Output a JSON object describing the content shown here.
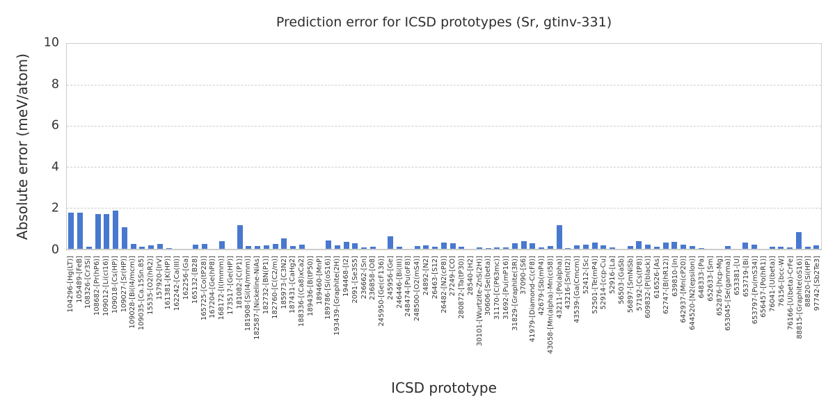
{
  "title": "Prediction error for ICSD prototypes (Sr, gtinv-331)",
  "axes": {
    "xlabel": "ICSD prototype",
    "ylabel": "Absolute error (meV/atom)"
  },
  "colors": {
    "bar": "#4878cf",
    "grid": "#cccccc",
    "text": "#2d2d2d"
  },
  "chart_data": {
    "type": "bar",
    "title": "Prediction error for ICSD prototypes (Sr, gtinv-331)",
    "xlabel": "ICSD prototype",
    "ylabel": "Absolute error (meV/atom)",
    "ylim": [
      0,
      10
    ],
    "yticks": [
      0,
      2,
      4,
      6,
      8,
      10
    ],
    "grid": "horizontal dashed at y=2,4,6,8",
    "legend": "none",
    "bar_color": "#4878cf",
    "categories": [
      "104296-[Hg(LT)]",
      "105489-[FeB]",
      "108326-[Cr3Si]",
      "108682-[Pr(hP6)]",
      "109012-[Li(cI16)]",
      "109018-[Cs(HP)]",
      "109027-[Sr(HP)]",
      "109028-[Bi(I4/mcm)]",
      "109035-[Ca.15Sn.85]",
      "15535-[O2(hR2)]",
      "157920-[IrV]",
      "161381-[K(HP)]",
      "162242-[Ca(III)]",
      "162256-[Ga]",
      "165132-[B28]",
      "165725-[Co(tP28)]",
      "167204-[Ge(hP8)]",
      "168172-[I(Immm)]",
      "173517-[Ge(HP)]",
      "181082-[C(P1)]",
      "181908-[Si(I4/mmm)]",
      "182587-[Nickeline-NiAs]",
      "182732-[BN(P1)]",
      "182760-[C(C2/m)]",
      "185973-[C3N2]",
      "187431-[CaHg2]",
      "188336-[(Ca8)xCa2]",
      "189436-[B(tP50)]",
      "189460-[MnP]",
      "189786-[Si(oS16)]",
      "193439-[Graphite(2H)]",
      "194468-[I2]",
      "2091-[Se3S5]",
      "236662-[Sn]",
      "236858-[O8]",
      "245950-[Ge(cF136)]",
      "245956-[Ge]",
      "246446-[Bi(III)]",
      "248474-[Pu(oF8)]",
      "248500-[O2(mS4)]",
      "24892-[N2]",
      "26463-[S12]",
      "26482-[N2(cP8)]",
      "27249-[CO]",
      "280872-[Ta(tP30)]",
      "28540-[H2]",
      "30101-[Wurtzite-ZnS(2H)]",
      "30606-[Se(beta)]",
      "31170-[C(P63mc)]",
      "31692-[Pu(mP16)]",
      "31829-[Graphite(3R)]",
      "37090-[S6]",
      "41979-[Diamond-C(cF8)]",
      "42679-[Sb(mP4)]",
      "43058-[Mn(alpha)-Mn(cI58)]",
      "43211-[Po(alpha)]",
      "43216-[Sn(tI2)]",
      "43539-[Ga(Cmcm)]",
      "52412-[Sc]",
      "52501-[Te(mP4)]",
      "52914-[ccp-Cu]",
      "52916-[La]",
      "56503-[GaSb]",
      "56897-[SmNiSb]",
      "57192-[Cs(tP8)]",
      "609832-[P(black)]",
      "616526-[As]",
      "62747-[B(hR12)]",
      "639810-[In]",
      "642937-[Mn(cP20)]",
      "644520-[N2(epsilon)]",
      "648333-[Pa]",
      "652633-[Sm]",
      "652876-[hcp-Mg]",
      "653045-[Se(gamma)]",
      "653381-[U]",
      "653719-[Bi]",
      "653797-[Pu(mS34)]",
      "656457-[Po(hR1)]",
      "76041-[U(beta)]",
      "76156-[bcc-W]",
      "76166-[U(beta)-CrFe]",
      "88815-[Graphite(oS16)]",
      "88820-[Si(HP)]",
      "97742-[Sb2Te3]"
    ],
    "values": [
      1.75,
      1.75,
      0.1,
      1.7,
      1.7,
      1.85,
      1.05,
      0.25,
      0.11,
      0.18,
      0.25,
      0.05,
      0,
      0,
      0.2,
      0.25,
      0,
      0.36,
      0,
      1.15,
      0.12,
      0.13,
      0.17,
      0.23,
      0.52,
      0.13,
      0.21,
      0,
      0,
      0.4,
      0.17,
      0.35,
      0.28,
      0.06,
      0.11,
      0,
      0.6,
      0.09,
      0,
      0.12,
      0.17,
      0.11,
      0.29,
      0.26,
      0.1,
      0,
      0.07,
      0.05,
      0.08,
      0.06,
      0.26,
      0.37,
      0.28,
      0.06,
      0.12,
      1.15,
      0.05,
      0.17,
      0.22,
      0.3,
      0.18,
      0.08,
      0,
      0.15,
      0.38,
      0.21,
      0.11,
      0.32,
      0.35,
      0.21,
      0.13,
      0.05,
      0,
      0,
      0.13,
      0,
      0.29,
      0.21,
      0,
      0.1,
      0.09,
      0.08,
      0.8,
      0.11,
      0.16
    ]
  }
}
